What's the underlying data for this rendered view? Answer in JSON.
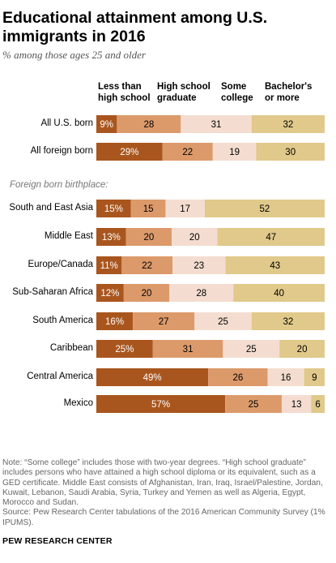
{
  "title": "Educational attainment among U.S. immigrants in 2016",
  "subtitle": "% among those ages 25 and older",
  "section_label": "Foreign born birthplace:",
  "note": "Note: “Some college” includes those with two-year degrees. “High school graduate” includes persons who have attained a high school diploma or its equivalent, such as a GED certificate. Middle East consists of Afghanistan, Iran, Iraq, Israel/Palestine, Jordan, Kuwait, Lebanon, Saudi Arabia, Syria, Turkey and Yemen as well as Algeria, Egypt, Morocco and Sudan.",
  "source": "Source: Pew Research Center tabulations of the 2016 American Community Survey (1% IPUMS).",
  "brand": "PEW RESEARCH CENTER",
  "chart_data": {
    "type": "bar",
    "orientation": "horizontal",
    "stacked": true,
    "unit": "%",
    "categories": [
      "All U.S. born",
      "All foreign born",
      "South and East Asia",
      "Middle East",
      "Europe/Canada",
      "Sub-Saharan Africa",
      "South America",
      "Caribbean",
      "Central America",
      "Mexico"
    ],
    "series": [
      {
        "name": "Less than\nhigh school",
        "color": "#a9561e",
        "text_color": "#ffffff",
        "values": [
          9,
          29,
          15,
          13,
          11,
          12,
          16,
          25,
          49,
          57
        ]
      },
      {
        "name": "High school\ngraduate",
        "color": "#dc9a6b",
        "text_color": "#000000",
        "values": [
          28,
          22,
          15,
          20,
          22,
          20,
          27,
          31,
          26,
          25
        ]
      },
      {
        "name": "Some\ncollege",
        "color": "#f4ddd0",
        "text_color": "#000000",
        "values": [
          31,
          19,
          17,
          20,
          23,
          28,
          25,
          25,
          16,
          13
        ]
      },
      {
        "name": "Bachelor's\nor more",
        "color": "#e0c98a",
        "text_color": "#000000",
        "values": [
          32,
          30,
          52,
          47,
          43,
          40,
          32,
          20,
          9,
          6
        ]
      }
    ],
    "percent_sign_on": "first_series"
  }
}
